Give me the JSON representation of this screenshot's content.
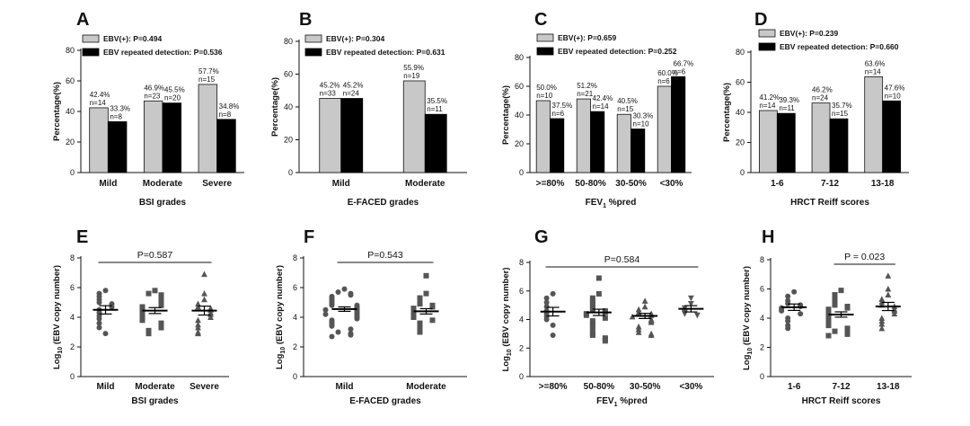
{
  "chart_data": [
    {
      "panel": "A",
      "type": "bar",
      "categories": [
        "Mild",
        "Moderate",
        "Severe"
      ],
      "xlabel": "BSI grades",
      "ylabel": "Percentage(%)",
      "ylim": [
        0,
        80
      ],
      "yticks": [
        0,
        20,
        40,
        60,
        80
      ],
      "series": [
        {
          "name": "EBV(+): P=0.494",
          "values": [
            42.4,
            46.9,
            57.7
          ],
          "labels": [
            "42.4%",
            "46.9%",
            "57.7%"
          ],
          "n": [
            "n=14",
            "n=23",
            "n=15"
          ]
        },
        {
          "name": "EBV repeated detection: P=0.536",
          "values": [
            33.3,
            45.5,
            34.8
          ],
          "labels": [
            "33.3%",
            "45.5%",
            "34.8%"
          ],
          "n": [
            "n=8",
            "n=20",
            "n=8"
          ]
        }
      ]
    },
    {
      "panel": "B",
      "type": "bar",
      "categories": [
        "Mild",
        "Moderate"
      ],
      "xlabel": "E-FACED grades",
      "ylabel": "Percentage(%)",
      "ylim": [
        0,
        80
      ],
      "yticks": [
        0,
        20,
        40,
        60,
        80
      ],
      "series": [
        {
          "name": "EBV(+): P=0.304",
          "values": [
            45.2,
            55.9
          ],
          "labels": [
            "45.2%",
            "55.9%"
          ],
          "n": [
            "n=33",
            "n=19"
          ]
        },
        {
          "name": "EBV repeated detection: P=0.631",
          "values": [
            45.2,
            35.5
          ],
          "labels": [
            "45.2%",
            "35.5%"
          ],
          "n": [
            "n=24",
            "n=11"
          ]
        }
      ]
    },
    {
      "panel": "C",
      "type": "bar",
      "categories": [
        ">=80%",
        "50-80%",
        "30-50%",
        "<30%"
      ],
      "xlabel": "FEV",
      "xlabel_sub": "1",
      "xlabel_rest": " %pred",
      "ylabel": "Percentage(%)",
      "ylim": [
        0,
        80
      ],
      "yticks": [
        0,
        20,
        40,
        60,
        80
      ],
      "series": [
        {
          "name": "EBV(+): P=0.659",
          "values": [
            50.0,
            51.2,
            40.5,
            60.0
          ],
          "labels": [
            "50.0%",
            "51.2%",
            "40.5%",
            "60.0%"
          ],
          "n": [
            "n=10",
            "n=21",
            "n=15",
            "n=6"
          ]
        },
        {
          "name": "EBV repeated detection: P=0.252",
          "values": [
            37.5,
            42.4,
            30.3,
            66.7
          ],
          "labels": [
            "37.5%",
            "42.4%",
            "30.3%",
            "66.7%"
          ],
          "n": [
            "n=6",
            "n=14",
            "n=10",
            "n=6"
          ]
        }
      ]
    },
    {
      "panel": "D",
      "type": "bar",
      "categories": [
        "1-6",
        "7-12",
        "13-18"
      ],
      "xlabel": "HRCT Reiff scores",
      "ylabel": "Percentage(%)",
      "ylim": [
        0,
        80
      ],
      "yticks": [
        0,
        20,
        40,
        60,
        80
      ],
      "series": [
        {
          "name": "EBV(+): P=0.239",
          "values": [
            41.2,
            46.2,
            63.6
          ],
          "labels": [
            "41.2%",
            "46.2%",
            "63.6%"
          ],
          "n": [
            "n=14",
            "n=24",
            "n=14"
          ]
        },
        {
          "name": "EBV repeated detection: P=0.660",
          "values": [
            39.3,
            35.7,
            47.6
          ],
          "labels": [
            "39.3%",
            "35.7%",
            "47.6%"
          ],
          "n": [
            "n=11",
            "n=15",
            "n=10"
          ]
        }
      ]
    },
    {
      "panel": "E",
      "type": "scatter",
      "categories": [
        "Mild",
        "Moderate",
        "Severe"
      ],
      "xlabel": "BSI grades",
      "ylabel": "Log10 (EBV copy number)",
      "ylim": [
        0,
        8
      ],
      "yticks": [
        0,
        2,
        4,
        6,
        8
      ],
      "markers": [
        "circle",
        "square",
        "triangle"
      ],
      "p_value": "P=0.587",
      "bracket": [
        0,
        2
      ],
      "means": [
        4.5,
        4.45,
        4.45
      ],
      "sem": [
        0.28,
        0.2,
        0.3
      ],
      "points": [
        [
          5.8,
          5.6,
          5.4,
          5.2,
          5.0,
          4.9,
          4.7,
          4.5,
          4.3,
          4.1,
          3.9,
          3.6,
          3.3,
          2.9
        ],
        [
          5.8,
          5.6,
          5.5,
          5.3,
          5.2,
          5.0,
          4.9,
          4.8,
          4.7,
          4.6,
          4.5,
          4.4,
          4.3,
          4.2,
          4.1,
          4.0,
          3.9,
          3.8,
          3.6,
          3.5,
          3.3,
          3.1,
          2.9
        ],
        [
          6.9,
          5.6,
          5.2,
          4.9,
          4.7,
          4.6,
          4.5,
          4.3,
          4.2,
          4.0,
          3.8,
          3.5,
          3.3,
          3.0,
          2.9
        ]
      ]
    },
    {
      "panel": "F",
      "type": "scatter",
      "categories": [
        "Mild",
        "Moderate"
      ],
      "xlabel": "E-FACED grades",
      "ylabel": "Log10 (EBV copy number)",
      "ylim": [
        0,
        8
      ],
      "yticks": [
        0,
        2,
        4,
        6,
        8
      ],
      "markers": [
        "circle",
        "square"
      ],
      "p_value": "P=0.543",
      "bracket": [
        0,
        1
      ],
      "means": [
        4.55,
        4.4
      ],
      "sem": [
        0.15,
        0.18
      ],
      "points": [
        [
          5.9,
          5.7,
          5.6,
          5.5,
          5.4,
          5.3,
          5.2,
          5.1,
          5.0,
          4.9,
          4.8,
          4.8,
          4.7,
          4.6,
          4.5,
          4.5,
          4.4,
          4.3,
          4.2,
          4.2,
          4.1,
          4.0,
          3.9,
          3.8,
          3.7,
          3.6,
          3.5,
          3.4,
          3.2,
          3.0,
          2.9,
          2.8,
          2.7
        ],
        [
          6.8,
          5.6,
          5.3,
          5.1,
          4.9,
          4.8,
          4.7,
          4.6,
          4.5,
          4.4,
          4.3,
          4.2,
          4.1,
          4.0,
          3.8,
          3.6,
          3.4,
          3.1,
          3.0
        ]
      ]
    },
    {
      "panel": "G",
      "type": "scatter",
      "categories": [
        ">=80%",
        "50-80%",
        "30-50%",
        "<30%"
      ],
      "xlabel": "FEV",
      "xlabel_sub": "1",
      "xlabel_rest": " %pred",
      "ylabel": "Log10 (EBV copy number)",
      "ylim": [
        0,
        8
      ],
      "yticks": [
        0,
        2,
        4,
        6,
        8
      ],
      "markers": [
        "circle",
        "square",
        "triangle",
        "triangle-down"
      ],
      "p_value": "P=0.584",
      "bracket": [
        0,
        3
      ],
      "means": [
        4.55,
        4.5,
        4.25,
        4.75
      ],
      "sem": [
        0.3,
        0.22,
        0.18,
        0.22
      ],
      "points": [
        [
          5.8,
          5.5,
          5.2,
          4.9,
          4.6,
          4.4,
          4.2,
          4.0,
          3.6,
          2.9
        ],
        [
          6.9,
          5.8,
          5.5,
          5.3,
          5.1,
          4.9,
          4.7,
          4.6,
          4.5,
          4.4,
          4.3,
          4.1,
          3.9,
          3.7,
          3.5,
          3.3,
          3.0,
          2.9,
          2.7,
          2.6,
          2.5
        ],
        [
          5.3,
          4.9,
          4.7,
          4.5,
          4.4,
          4.3,
          4.2,
          4.0,
          3.9,
          3.8,
          3.5,
          3.3,
          3.1,
          3.0,
          2.9
        ],
        [
          5.5,
          5.1,
          4.8,
          4.5,
          4.4,
          4.3
        ]
      ]
    },
    {
      "panel": "H",
      "type": "scatter",
      "categories": [
        "1-6",
        "7-12",
        "13-18"
      ],
      "xlabel": "HRCT Reiff scores",
      "ylabel": "Log10 (EBV copy number)",
      "ylim": [
        0,
        8
      ],
      "yticks": [
        0,
        2,
        4,
        6,
        8
      ],
      "markers": [
        "circle",
        "square",
        "triangle"
      ],
      "p_value": "P = 0.023",
      "bracket": [
        1,
        2
      ],
      "means": [
        4.75,
        4.25,
        4.8
      ],
      "sem": [
        0.22,
        0.18,
        0.28
      ],
      "points": [
        [
          5.8,
          5.5,
          5.2,
          5.0,
          4.9,
          4.8,
          4.7,
          4.6,
          4.5,
          4.3,
          4.0,
          3.8,
          3.5,
          3.3
        ],
        [
          5.9,
          5.6,
          5.3,
          5.1,
          4.9,
          4.8,
          4.7,
          4.6,
          4.5,
          4.4,
          4.3,
          4.2,
          4.1,
          4.0,
          3.9,
          3.8,
          3.7,
          3.6,
          3.5,
          3.3,
          3.1,
          3.0,
          2.9,
          2.8
        ],
        [
          6.9,
          6.0,
          5.6,
          5.3,
          5.1,
          4.9,
          4.8,
          4.6,
          4.5,
          4.3,
          4.0,
          3.8,
          3.6,
          3.3
        ]
      ]
    }
  ]
}
